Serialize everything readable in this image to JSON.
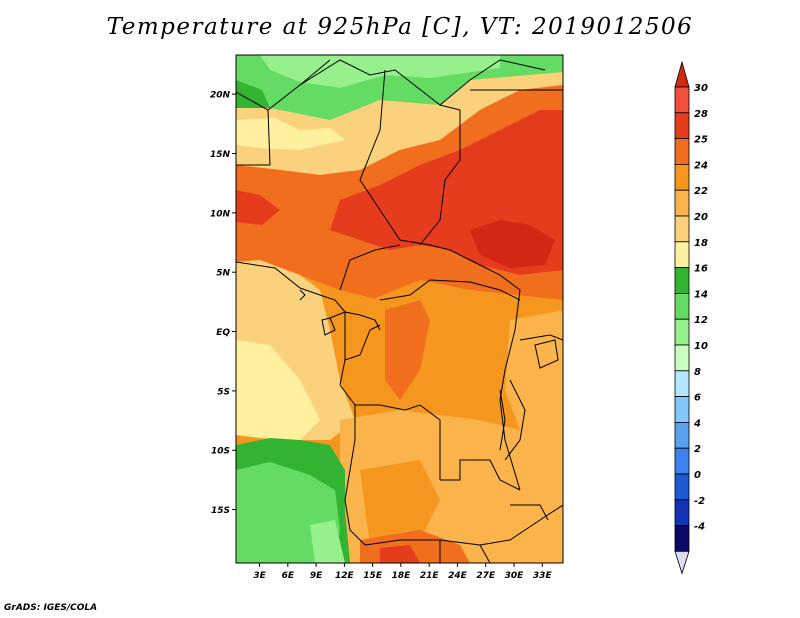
{
  "title": "Temperature at 925hPa [C], VT: 2019012506",
  "footer": "GrADS: IGES/COLA",
  "map": {
    "lat_labels": [
      {
        "lat": 20,
        "label": "20N"
      },
      {
        "lat": 15,
        "label": "15N"
      },
      {
        "lat": 10,
        "label": "10N"
      },
      {
        "lat": 5,
        "label": "5N"
      },
      {
        "lat": 0,
        "label": "EQ"
      },
      {
        "lat": -5,
        "label": "5S"
      },
      {
        "lat": -10,
        "label": "10S"
      },
      {
        "lat": -15,
        "label": "15S"
      }
    ],
    "lon_labels": [
      {
        "lon": 3,
        "label": "3E"
      },
      {
        "lon": 6,
        "label": "6E"
      },
      {
        "lon": 9,
        "label": "9E"
      },
      {
        "lon": 12,
        "label": "12E"
      },
      {
        "lon": 15,
        "label": "15E"
      },
      {
        "lon": 18,
        "label": "18E"
      },
      {
        "lon": 21,
        "label": "21E"
      },
      {
        "lon": 24,
        "label": "24E"
      },
      {
        "lon": 27,
        "label": "27E"
      },
      {
        "lon": 30,
        "label": "30E"
      },
      {
        "lon": 33,
        "label": "33E"
      }
    ]
  },
  "colorbar": {
    "labels": [
      "30",
      "28",
      "25",
      "24",
      "22",
      "20",
      "18",
      "16",
      "14",
      "12",
      "10",
      "8",
      "6",
      "4",
      "2",
      "0",
      "-2",
      "-4"
    ],
    "colors": [
      "#f0503c",
      "#e63c1e",
      "#f06e1e",
      "#f5961e",
      "#fab44b",
      "#fad27d",
      "#fff0a0",
      "#32b432",
      "#64dc64",
      "#96f08c",
      "#c8ffbe",
      "#b4e6ff",
      "#82c8fa",
      "#5aa0f0",
      "#3c82f0",
      "#1e5ad2",
      "#1432b4",
      "#0a0a64"
    ],
    "top_tri_color": "#d22814",
    "bottom_tri_color": "#dcdcf0"
  }
}
